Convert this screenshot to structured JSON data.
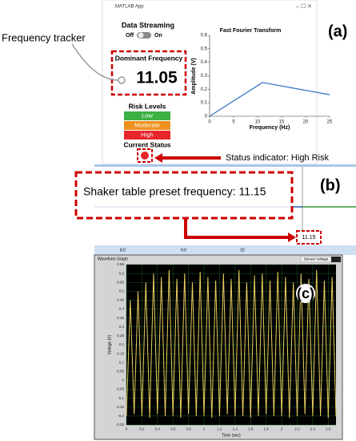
{
  "window_title": "MATLAB App",
  "panel_labels": [
    "(a)",
    "(b)",
    "(c)"
  ],
  "annotations": {
    "frequency_tracker": "Frequency tracker",
    "status_indicator": "Status indicator: High Risk",
    "preset_frequency": "Shaker table preset frequency: 11.15"
  },
  "app": {
    "streaming_label": "Data Streaming",
    "toggle_off": "Off",
    "toggle_on": "On",
    "dominant_label": "Dominant Frequency",
    "dominant_value": "11.05",
    "risk_title": "Risk Levels",
    "risk_levels": [
      {
        "label": "Low",
        "color": "#3cb043"
      },
      {
        "label": "Moderate",
        "color": "#f0901e"
      },
      {
        "label": "High",
        "color": "#e8252a"
      }
    ],
    "status_label": "Current Status",
    "status_color": "#e8252a"
  },
  "fft": {
    "type": "line",
    "title": "Fast Fourier Transform",
    "x_label": "Frequency (Hz)",
    "y_label": "Amplitude (V)",
    "x": [
      0,
      11,
      25
    ],
    "values": [
      0,
      0.25,
      0.16
    ],
    "color": "#3a78c4",
    "xlim": [
      0,
      25
    ],
    "xticks": [
      0,
      5,
      10,
      15,
      20,
      25
    ],
    "ylim": [
      0,
      0.6
    ],
    "yticks": [
      0,
      0.1,
      0.2,
      0.3,
      0.4,
      0.5,
      0.6
    ],
    "grid": false
  },
  "panel_b": {
    "readout": "11.15",
    "axis_labels": [
      "8.0",
      "9.0",
      "10"
    ]
  },
  "waveform": {
    "type": "line",
    "title": "Waveform Graph",
    "x_label": "Time (sec)",
    "y_label": "Voltage (V)",
    "x": [
      0,
      0.05,
      0.1,
      0.15,
      0.2,
      0.25,
      0.3,
      0.35,
      0.4,
      0.45,
      0.5,
      0.55,
      0.6,
      0.65,
      0.7,
      0.75,
      0.8,
      0.85,
      0.9,
      0.95,
      1,
      1.05,
      1.1,
      1.15,
      1.2,
      1.25,
      1.3,
      1.35,
      1.4,
      1.45,
      1.5,
      1.55,
      1.6,
      1.65,
      1.7,
      1.75,
      1.8,
      1.85,
      1.9,
      1.95,
      2,
      2.05,
      2.1,
      2.15,
      2.2,
      2.25,
      2.3,
      2.35,
      2.4,
      2.45,
      2.5,
      2.55,
      2.6,
      2.65,
      2.7
    ],
    "series": [
      {
        "name": "Sensor Voltage",
        "color": "#e8d060",
        "values": [
          -0.2,
          0.45,
          -0.19,
          0.5,
          -0.2,
          0.55,
          -0.21,
          0.6,
          -0.19,
          0.58,
          -0.2,
          0.62,
          -0.2,
          0.57,
          -0.21,
          0.6,
          -0.19,
          0.55,
          -0.2,
          0.61,
          -0.2,
          0.58,
          -0.21,
          0.56,
          -0.2,
          0.6,
          -0.19,
          0.57,
          -0.2,
          0.62,
          -0.2,
          0.55,
          -0.21,
          0.59,
          -0.2,
          0.6,
          -0.19,
          0.56,
          -0.2,
          0.61,
          -0.2,
          0.58,
          -0.21,
          0.55,
          -0.2,
          0.6,
          -0.19,
          0.57,
          -0.2,
          0.62,
          -0.2,
          0.56,
          -0.21,
          0.58,
          -0.2
        ]
      }
    ],
    "xlim": [
      0,
      2.7
    ],
    "xticks": [
      0,
      0.2,
      0.4,
      0.6,
      0.8,
      1,
      1.2,
      1.4,
      1.6,
      1.8,
      2,
      2.2,
      2.4,
      2.6
    ],
    "ylim": [
      -0.25,
      0.65
    ],
    "yticks": [
      -0.25,
      -0.2,
      -0.15,
      -0.1,
      -0.05,
      0,
      0.05,
      0.1,
      0.15,
      0.2,
      0.25,
      0.3,
      0.35,
      0.4,
      0.45,
      0.5,
      0.55,
      0.6,
      0.65
    ],
    "grid": true
  }
}
